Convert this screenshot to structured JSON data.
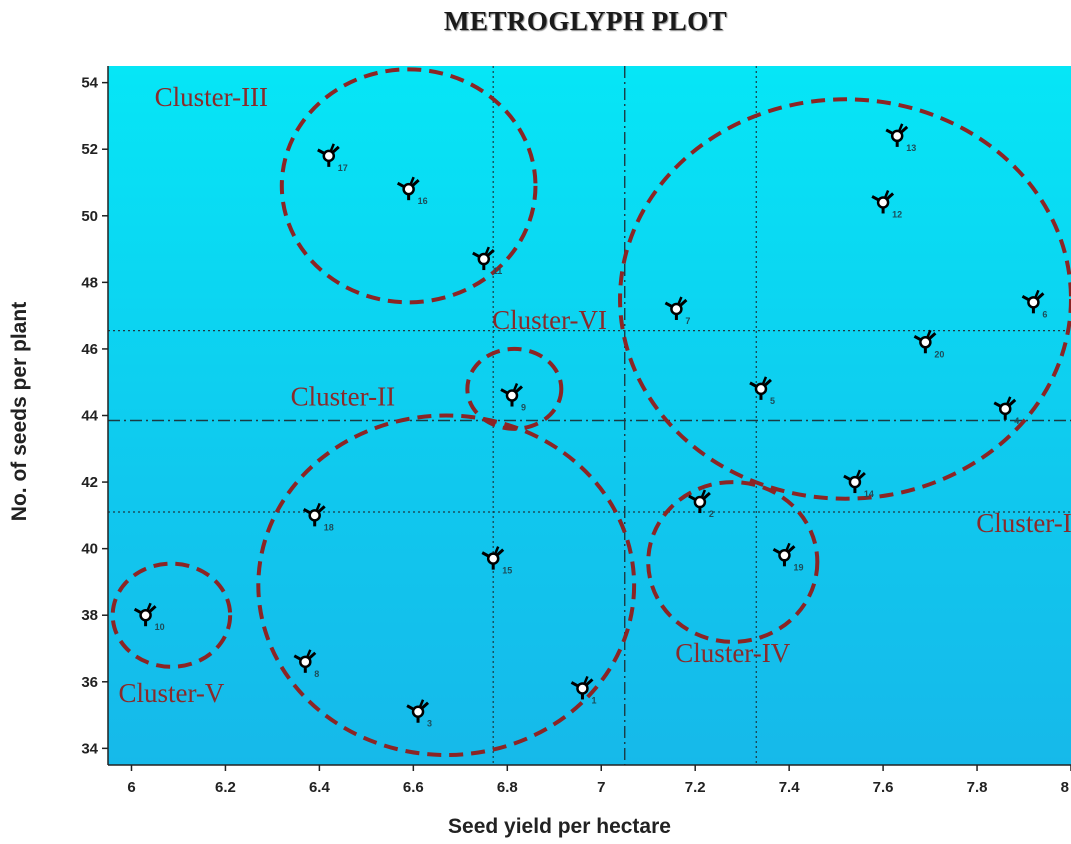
{
  "chart_data": {
    "type": "scatter",
    "title": "METROGLYPH PLOT",
    "xlabel": "Seed yield per hectare",
    "ylabel": "No. of seeds per plant",
    "xlim": [
      5.95,
      8.0
    ],
    "ylim": [
      33.5,
      54.5
    ],
    "xticks": [
      "6",
      "6.2",
      "6.4",
      "6.6",
      "6.8",
      "7",
      "7.2",
      "7.4",
      "7.6",
      "7.8",
      "8"
    ],
    "yticks": [
      "34",
      "36",
      "38",
      "40",
      "42",
      "44",
      "46",
      "48",
      "50",
      "52",
      "54"
    ],
    "background": "#10d0f0",
    "cluster_color": "#8b2525",
    "grid": false,
    "reference_lines": {
      "x_dotted": [
        6.77,
        7.33
      ],
      "x_dashdot": [
        7.05
      ],
      "y_dotted": [
        41.1,
        46.55
      ],
      "y_dashdot": [
        43.85
      ]
    },
    "points": [
      {
        "label": "1",
        "x": 6.96,
        "y": 35.8
      },
      {
        "label": "2",
        "x": 7.21,
        "y": 41.4
      },
      {
        "label": "3",
        "x": 6.61,
        "y": 35.1
      },
      {
        "label": "4",
        "x": 7.86,
        "y": 44.2
      },
      {
        "label": "5",
        "x": 7.34,
        "y": 44.8
      },
      {
        "label": "6",
        "x": 7.92,
        "y": 47.4
      },
      {
        "label": "7",
        "x": 7.16,
        "y": 47.2
      },
      {
        "label": "8",
        "x": 6.37,
        "y": 36.6
      },
      {
        "label": "9",
        "x": 6.81,
        "y": 44.6
      },
      {
        "label": "10",
        "x": 6.03,
        "y": 38.0
      },
      {
        "label": "11",
        "x": 6.75,
        "y": 48.7
      },
      {
        "label": "12",
        "x": 7.6,
        "y": 50.4
      },
      {
        "label": "13",
        "x": 7.63,
        "y": 52.4
      },
      {
        "label": "14",
        "x": 7.54,
        "y": 42.0
      },
      {
        "label": "15",
        "x": 6.77,
        "y": 39.7
      },
      {
        "label": "16",
        "x": 6.59,
        "y": 50.8
      },
      {
        "label": "17",
        "x": 6.42,
        "y": 51.8
      },
      {
        "label": "18",
        "x": 6.39,
        "y": 41.0
      },
      {
        "label": "19",
        "x": 7.39,
        "y": 39.8
      },
      {
        "label": "20",
        "x": 7.69,
        "y": 46.2
      }
    ],
    "clusters": [
      {
        "name": "Cluster-I",
        "cx": 7.52,
        "cy": 47.5,
        "rx": 0.48,
        "ry": 6.0,
        "label_x": 7.9,
        "label_y": 40.5
      },
      {
        "name": "Cluster-II",
        "cx": 6.67,
        "cy": 38.9,
        "rx": 0.4,
        "ry": 5.1,
        "label_x": 6.45,
        "label_y": 44.3
      },
      {
        "name": "Cluster-III",
        "cx": 6.59,
        "cy": 50.9,
        "rx": 0.27,
        "ry": 3.5,
        "label_x": 6.17,
        "label_y": 53.3
      },
      {
        "name": "Cluster-IV",
        "cx": 7.28,
        "cy": 39.6,
        "rx": 0.18,
        "ry": 2.4,
        "label_x": 7.28,
        "label_y": 36.6
      },
      {
        "name": "Cluster-V",
        "cx": 6.085,
        "cy": 38.0,
        "rx": 0.125,
        "ry": 1.55,
        "label_x": 6.085,
        "label_y": 35.4
      },
      {
        "name": "Cluster-VI",
        "cx": 6.815,
        "cy": 44.8,
        "rx": 0.1,
        "ry": 1.2,
        "label_x": 6.89,
        "label_y": 46.6
      }
    ]
  }
}
